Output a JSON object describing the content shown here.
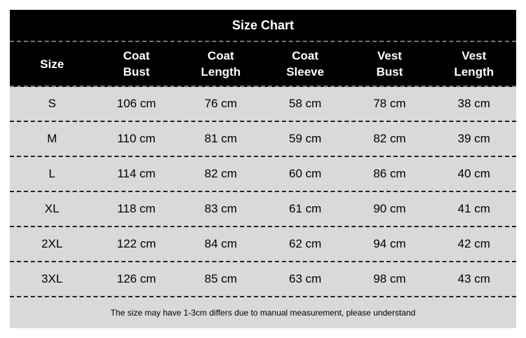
{
  "title": "Size Chart",
  "headers": [
    "Size",
    "Coat\nBust",
    "Coat\nLength",
    "Coat\nSleeve",
    "Vest\nBust",
    "Vest\nLength"
  ],
  "rows": [
    [
      "S",
      "106 cm",
      "76 cm",
      "58 cm",
      "78 cm",
      "38 cm"
    ],
    [
      "M",
      "110 cm",
      "81 cm",
      "59 cm",
      "82 cm",
      "39 cm"
    ],
    [
      "L",
      "114 cm",
      "82 cm",
      "60 cm",
      "86 cm",
      "40 cm"
    ],
    [
      "XL",
      "118 cm",
      "83 cm",
      "61 cm",
      "90 cm",
      "41 cm"
    ],
    [
      "2XL",
      "122 cm",
      "84 cm",
      "62 cm",
      "94 cm",
      "42 cm"
    ],
    [
      "3XL",
      "126 cm",
      "85 cm",
      "63 cm",
      "98 cm",
      "43 cm"
    ]
  ],
  "note": "The size may have 1-3cm differs due to manual measurement, please understand",
  "colors": {
    "header_bg": "#000000",
    "row_bg": "#d9d9d9"
  }
}
